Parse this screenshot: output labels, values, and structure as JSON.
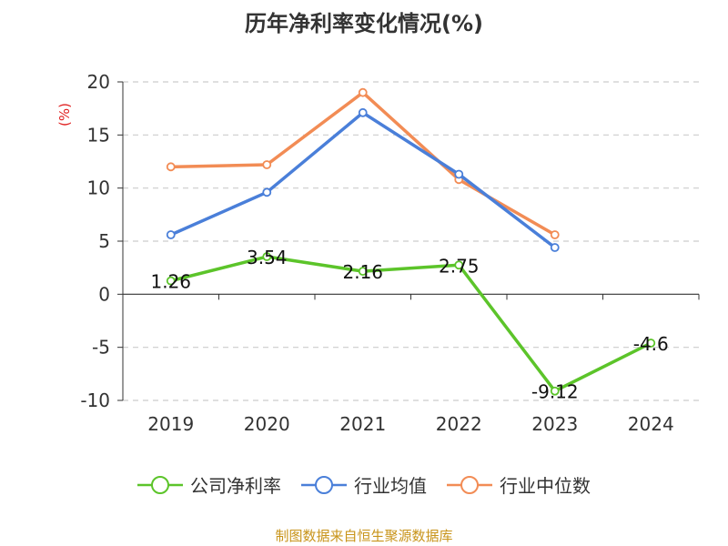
{
  "title": "历年净利率变化情况(%)",
  "source": "制图数据来自恒生聚源数据库",
  "chart_data": {
    "type": "line",
    "title": "历年净利率变化情况(%)",
    "ylabel": "(%)",
    "ylabel_color": "#e02020",
    "categories": [
      "2019",
      "2020",
      "2021",
      "2022",
      "2023",
      "2024"
    ],
    "ylim": [
      -10,
      20
    ],
    "yticks": [
      -10,
      -5,
      0,
      5,
      10,
      15,
      20
    ],
    "grid": true,
    "legend_position": "bottom",
    "series": [
      {
        "name": "公司净利率",
        "color": "#5cc42a",
        "values": [
          1.26,
          3.54,
          2.16,
          2.75,
          -9.12,
          -4.6
        ],
        "labels": [
          "1.26",
          "3.54",
          "2.16",
          "2.75",
          "-9.12",
          "-4.6"
        ]
      },
      {
        "name": "行业均值",
        "color": "#4a7fd9",
        "values": [
          5.6,
          9.6,
          17.1,
          11.3,
          4.4,
          null
        ]
      },
      {
        "name": "行业中位数",
        "color": "#f28c55",
        "values": [
          12.0,
          12.2,
          19.0,
          10.8,
          5.6,
          null
        ]
      }
    ]
  }
}
